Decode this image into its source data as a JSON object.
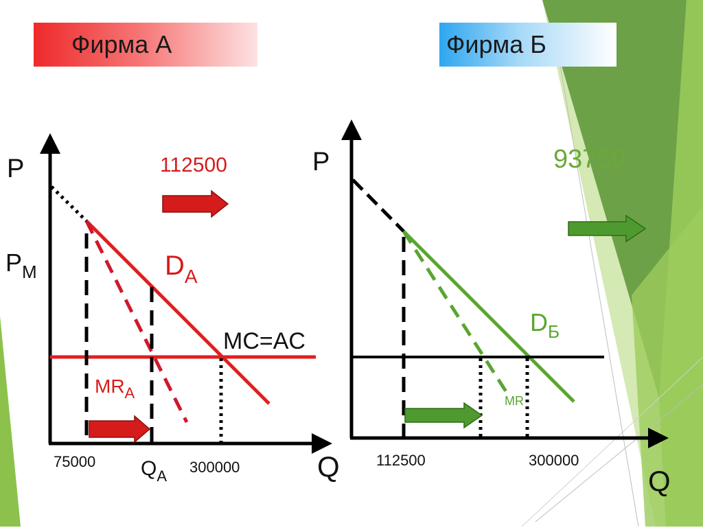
{
  "colors": {
    "red": "#e01f1f",
    "green": "#5aa532",
    "dark_red": "#b80f0f",
    "axis": "#000000",
    "value_green": "#6aa83a"
  },
  "firm_a": {
    "title": "Фирма А",
    "axis_y": "P",
    "axis_x": "Q",
    "price_label": "P",
    "price_label_sub": "M",
    "demand_label": "D",
    "demand_label_sub": "A",
    "mr_label": "MR",
    "mr_label_sub": "A",
    "cost_label": "MC=AC",
    "qa_label": "Q",
    "qa_label_sub": "A",
    "q_left": "75000",
    "q_right": "300000",
    "value": "112500"
  },
  "firm_b": {
    "title": "Фирма Б",
    "axis_y": "P",
    "axis_x": "Q",
    "demand_label": "D",
    "demand_label_sub": "Б",
    "mr_label": "MR",
    "q_left": "112500",
    "q_right": "300000",
    "value": "93750"
  }
}
